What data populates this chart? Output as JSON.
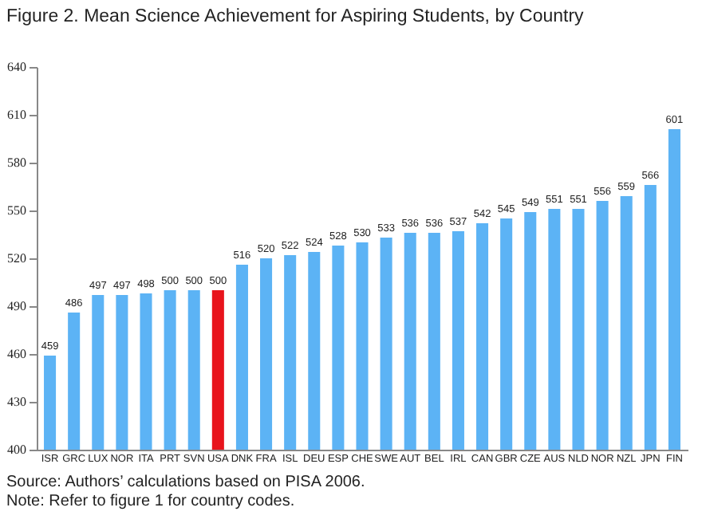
{
  "chart_data": {
    "type": "bar",
    "title": "Figure 2. Mean Science Achievement for Aspiring Students, by Country",
    "categories": [
      "ISR",
      "GRC",
      "LUX",
      "NOR",
      "ITA",
      "PRT",
      "SVN",
      "USA",
      "DNK",
      "FRA",
      "ISL",
      "DEU",
      "ESP",
      "CHE",
      "SWE",
      "AUT",
      "BEL",
      "IRL",
      "CAN",
      "GBR",
      "CZE",
      "AUS",
      "NLD",
      "NOR",
      "NZL",
      "JPN",
      "FIN"
    ],
    "values": [
      459,
      486,
      497,
      497,
      498,
      500,
      500,
      500,
      516,
      520,
      522,
      524,
      528,
      530,
      533,
      536,
      536,
      537,
      542,
      545,
      549,
      551,
      551,
      556,
      559,
      566,
      601
    ],
    "colors": [
      "#5cb3f5",
      "#5cb3f5",
      "#5cb3f5",
      "#5cb3f5",
      "#5cb3f5",
      "#5cb3f5",
      "#5cb3f5",
      "#e8141c",
      "#5cb3f5",
      "#5cb3f5",
      "#5cb3f5",
      "#5cb3f5",
      "#5cb3f5",
      "#5cb3f5",
      "#5cb3f5",
      "#5cb3f5",
      "#5cb3f5",
      "#5cb3f5",
      "#5cb3f5",
      "#5cb3f5",
      "#5cb3f5",
      "#5cb3f5",
      "#5cb3f5",
      "#5cb3f5",
      "#5cb3f5",
      "#5cb3f5",
      "#5cb3f5"
    ],
    "ylim": [
      400,
      640
    ],
    "yticks": [
      400,
      430,
      460,
      490,
      520,
      550,
      580,
      610,
      640
    ],
    "data_labels": true,
    "grid": false,
    "annotations": [
      "Source: Authors’ calculations based on PISA 2006.",
      "Note: Refer to figure 1 for country codes."
    ]
  }
}
